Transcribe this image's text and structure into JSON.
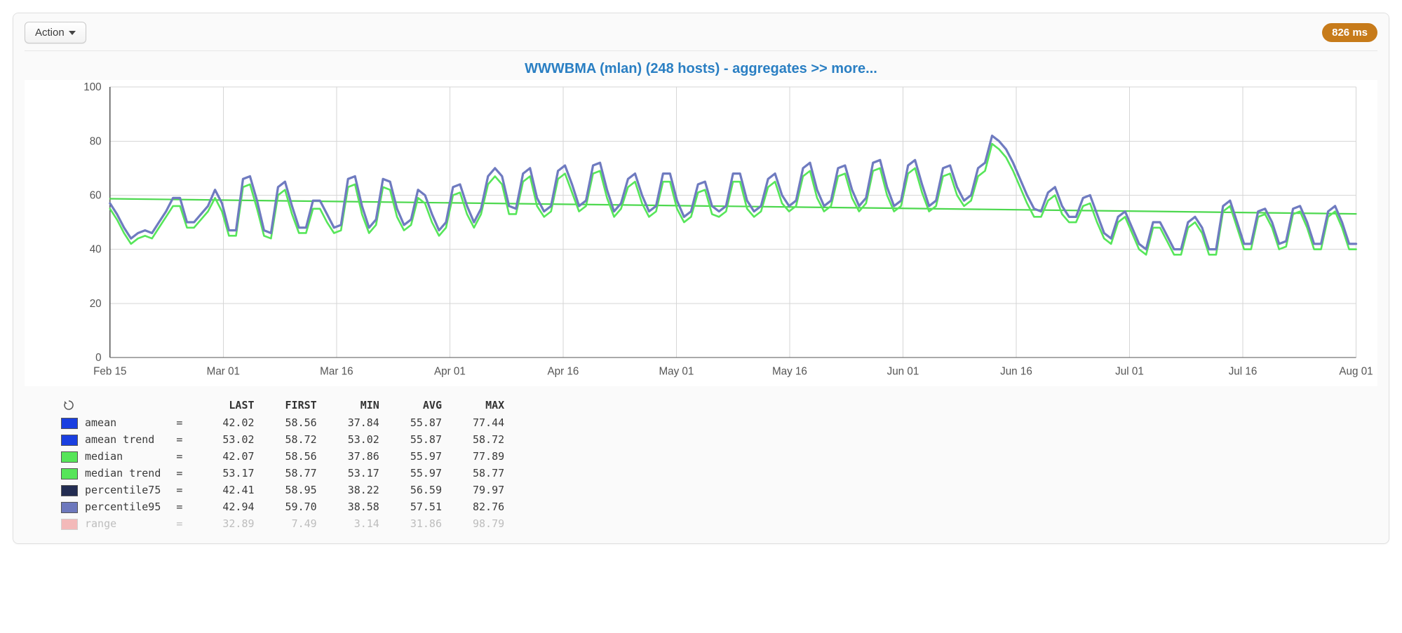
{
  "toolbar": {
    "action_label": "Action",
    "timing_badge": "826 ms"
  },
  "chart": {
    "title": "WWWBMA (mlan) (248 hosts) - aggregates >> more...",
    "type": "line",
    "background_color": "#ffffff",
    "grid_color": "#d6d6d6",
    "axis_color": "#555555",
    "tick_fontsize": 15,
    "ylim": [
      0,
      100
    ],
    "ytick_step": 20,
    "xaxis": {
      "labels": [
        "Feb 15",
        "Mar 01",
        "Mar 16",
        "Apr 01",
        "Apr 16",
        "May 01",
        "May 16",
        "Jun 01",
        "Jun 16",
        "Jul 01",
        "Jul 16",
        "Aug 01"
      ]
    },
    "series": {
      "percentile95": {
        "color": "#6f7bc0",
        "line_width": 3.2,
        "values": [
          57,
          53,
          48,
          44,
          46,
          47,
          46,
          50,
          54,
          59,
          59,
          50,
          50,
          53,
          56,
          62,
          57,
          47,
          47,
          66,
          67,
          58,
          47,
          46,
          63,
          65,
          56,
          48,
          48,
          58,
          58,
          53,
          48,
          49,
          66,
          67,
          56,
          48,
          51,
          66,
          65,
          55,
          49,
          51,
          62,
          60,
          53,
          47,
          50,
          63,
          64,
          56,
          50,
          55,
          67,
          70,
          67,
          56,
          55,
          68,
          70,
          59,
          54,
          56,
          69,
          71,
          64,
          56,
          58,
          71,
          72,
          62,
          54,
          57,
          66,
          68,
          60,
          54,
          56,
          68,
          68,
          58,
          52,
          54,
          64,
          65,
          56,
          54,
          56,
          68,
          68,
          58,
          54,
          56,
          66,
          68,
          60,
          56,
          58,
          70,
          72,
          62,
          56,
          58,
          70,
          71,
          62,
          56,
          59,
          72,
          73,
          63,
          56,
          58,
          71,
          73,
          64,
          56,
          58,
          70,
          71,
          63,
          58,
          60,
          70,
          72,
          82,
          80,
          77,
          72,
          66,
          60,
          55,
          54,
          61,
          63,
          56,
          52,
          52,
          59,
          60,
          53,
          46,
          44,
          52,
          54,
          48,
          42,
          40,
          50,
          50,
          45,
          40,
          40,
          50,
          52,
          48,
          40,
          40,
          56,
          58,
          50,
          42,
          42,
          54,
          55,
          50,
          42,
          43,
          55,
          56,
          50,
          42,
          42,
          54,
          56,
          50,
          42,
          42
        ]
      },
      "median": {
        "color": "#57e65a",
        "line_width": 2.6,
        "values": [
          55,
          51,
          46,
          42,
          44,
          45,
          44,
          48,
          52,
          56,
          56,
          48,
          48,
          51,
          54,
          59,
          54,
          45,
          45,
          63,
          64,
          55,
          45,
          44,
          60,
          62,
          53,
          46,
          46,
          55,
          55,
          50,
          46,
          47,
          63,
          64,
          53,
          46,
          49,
          63,
          62,
          52,
          47,
          49,
          59,
          57,
          50,
          45,
          48,
          60,
          61,
          53,
          48,
          53,
          64,
          67,
          64,
          53,
          53,
          65,
          67,
          56,
          52,
          54,
          66,
          68,
          61,
          54,
          56,
          68,
          69,
          59,
          52,
          55,
          63,
          65,
          57,
          52,
          54,
          65,
          65,
          55,
          50,
          52,
          61,
          62,
          53,
          52,
          54,
          65,
          65,
          55,
          52,
          54,
          63,
          65,
          57,
          54,
          56,
          67,
          69,
          59,
          54,
          56,
          67,
          68,
          59,
          54,
          57,
          69,
          70,
          60,
          54,
          56,
          68,
          70,
          61,
          54,
          56,
          67,
          68,
          60,
          56,
          58,
          67,
          69,
          79,
          77,
          74,
          69,
          63,
          57,
          52,
          52,
          58,
          60,
          53,
          50,
          50,
          56,
          57,
          50,
          44,
          42,
          50,
          52,
          46,
          40,
          38,
          48,
          48,
          43,
          38,
          38,
          48,
          50,
          46,
          38,
          38,
          54,
          56,
          48,
          40,
          40,
          52,
          53,
          48,
          40,
          41,
          53,
          54,
          48,
          40,
          40,
          52,
          54,
          48,
          40,
          40
        ]
      },
      "trend": {
        "color": "#4dd84f",
        "line_width": 2.2,
        "start": 58.7,
        "end": 53.1
      }
    }
  },
  "legend": {
    "headers": [
      "LAST",
      "FIRST",
      "MIN",
      "AVG",
      "MAX"
    ],
    "rows": [
      {
        "name": "amean",
        "color": "#1a3fe0",
        "disabled": false,
        "values": [
          "42.02",
          "58.56",
          "37.84",
          "55.87",
          "77.44"
        ]
      },
      {
        "name": "amean trend",
        "color": "#1a3fe0",
        "disabled": false,
        "values": [
          "53.02",
          "58.72",
          "53.02",
          "55.87",
          "58.72"
        ]
      },
      {
        "name": "median",
        "color": "#56e559",
        "disabled": false,
        "values": [
          "42.07",
          "58.56",
          "37.86",
          "55.97",
          "77.89"
        ]
      },
      {
        "name": "median trend",
        "color": "#56e559",
        "disabled": false,
        "values": [
          "53.17",
          "58.77",
          "53.17",
          "55.97",
          "58.77"
        ]
      },
      {
        "name": "percentile75",
        "color": "#232d52",
        "disabled": false,
        "values": [
          "42.41",
          "58.95",
          "38.22",
          "56.59",
          "79.97"
        ]
      },
      {
        "name": "percentile95",
        "color": "#6d78bd",
        "disabled": false,
        "values": [
          "42.94",
          "59.70",
          "38.58",
          "57.51",
          "82.76"
        ]
      },
      {
        "name": "range",
        "color": "#f3b9b9",
        "disabled": true,
        "values": [
          "32.89",
          "7.49",
          "3.14",
          "31.86",
          "98.79"
        ]
      }
    ]
  }
}
